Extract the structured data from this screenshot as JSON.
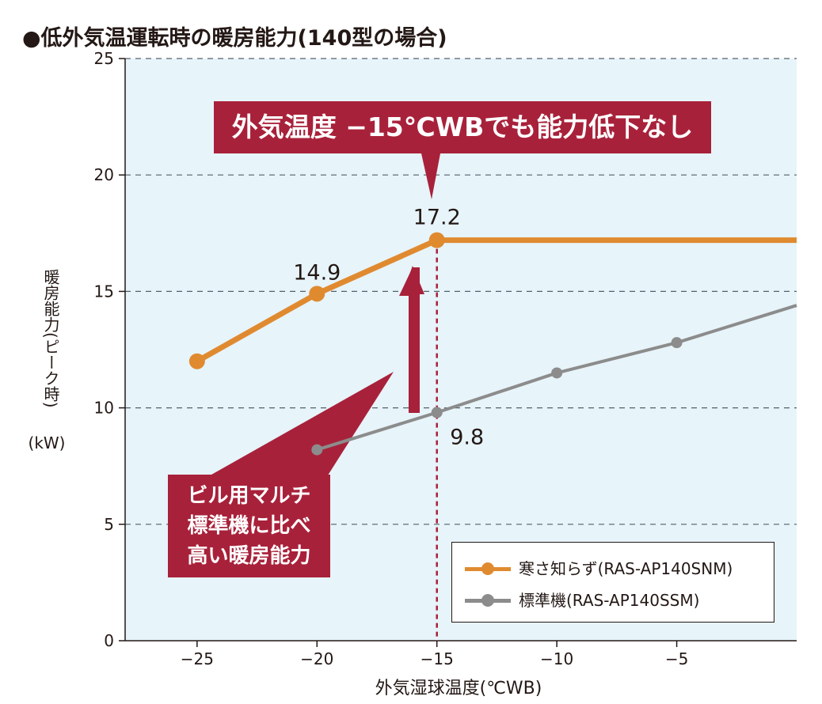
{
  "title": "●低外気温運転時の暖房能力(140型の場合)",
  "callouts": {
    "top": "外気温度 −15℃WBでも能力低下なし",
    "left_line1": "ビル用マルチ",
    "left_line2": "標準機に比べ",
    "left_line3": "高い暖房能力"
  },
  "colors": {
    "orange": "#e08a30",
    "gray": "#8c8c8c",
    "accent": "#a8213a",
    "plot_bg": "#e7f4fa"
  },
  "chart_data": {
    "type": "line",
    "title": "●低外気温運転時の暖房能力(140型の場合)",
    "xlabel": "外気湿球温度(℃WB)",
    "ylabel": "暖房能力(ピーク時)",
    "yunit": "(kW)",
    "xlim": [
      -28,
      0
    ],
    "ylim": [
      0,
      25
    ],
    "xticks": [
      -25,
      -20,
      -15,
      -10,
      -5
    ],
    "xtick_labels": [
      "−25",
      "−20",
      "−15",
      "−10",
      "−5"
    ],
    "yticks": [
      0,
      5,
      10,
      15,
      20,
      25
    ],
    "grid": "horizontal dashed",
    "series": [
      {
        "name": "寒さ知らず(RAS-AP140SNM)",
        "color": "#e08a30",
        "x": [
          -25,
          -20,
          -15,
          0
        ],
        "y": [
          12.0,
          14.9,
          17.2,
          17.2
        ],
        "markers": [
          true,
          true,
          true,
          false
        ]
      },
      {
        "name": "標準機(RAS-AP140SSM)",
        "color": "#8c8c8c",
        "x": [
          -20,
          -15,
          -10,
          -5,
          0
        ],
        "y": [
          8.2,
          9.8,
          11.5,
          12.8,
          14.4
        ],
        "markers": [
          true,
          true,
          true,
          true,
          false
        ]
      }
    ],
    "annotations": [
      {
        "text": "14.9",
        "x": -20,
        "y": 14.9
      },
      {
        "text": "17.2",
        "x": -15,
        "y": 17.2
      },
      {
        "text": "9.8",
        "x": -15,
        "y": 9.8
      }
    ],
    "reference_line_x": -15,
    "legend": "bottom-right"
  }
}
